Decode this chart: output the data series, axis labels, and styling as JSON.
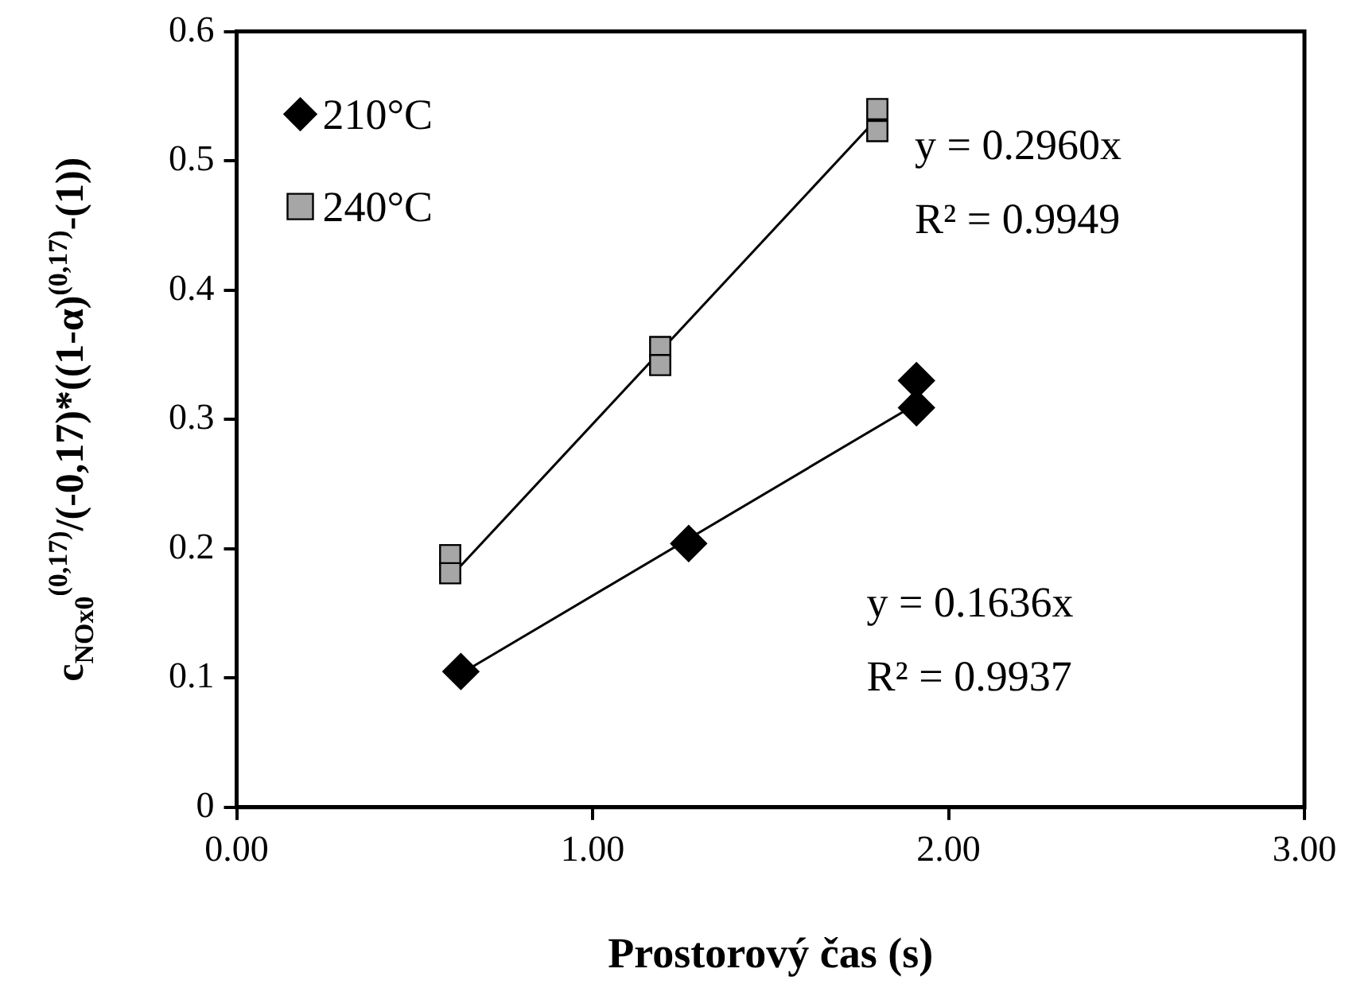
{
  "chart_data": {
    "type": "scatter",
    "xlabel": "Prostorový čas (s)",
    "ylabel": "c$_{NOx0}$$^{(0,17)}$/(-0,17)*((1-α)$^{(0,17)}$-(1))",
    "xlim": [
      0,
      3
    ],
    "ylim": [
      0,
      0.6
    ],
    "xticks": [
      {
        "value": 0,
        "label": "0.00"
      },
      {
        "value": 1,
        "label": "1.00"
      },
      {
        "value": 2,
        "label": "2.00"
      },
      {
        "value": 3,
        "label": "3.00"
      }
    ],
    "yticks": [
      0,
      0.1,
      0.2,
      0.3,
      0.4,
      0.5,
      0.6
    ],
    "legend": "top left",
    "series": [
      {
        "name": "210°C",
        "color": "#000000",
        "marker": "diamond",
        "x": [
          0.63,
          1.27,
          1.91,
          1.91
        ],
        "values": [
          0.105,
          0.204,
          0.33,
          0.309
        ]
      },
      {
        "name": "240°C",
        "color": "#a6a6a6",
        "marker": "square",
        "x": [
          0.6,
          0.6,
          1.19,
          1.19,
          1.8,
          1.8
        ],
        "values": [
          0.195,
          0.181,
          0.356,
          0.342,
          0.54,
          0.523
        ]
      },
      {
        "type": "line",
        "color": "#000000",
        "marker": "none",
        "x": [
          0.6,
          1.8
        ],
        "values": [
          0.178,
          0.533
        ]
      },
      {
        "type": "line",
        "color": "#000000",
        "marker": "none",
        "x": [
          0.634,
          1.91
        ],
        "values": [
          0.104,
          0.312
        ]
      }
    ],
    "annotations": [
      "y = 0.2960x",
      "R² = 0.9949",
      "y = 0.1636x",
      "R² = 0.9937"
    ]
  }
}
